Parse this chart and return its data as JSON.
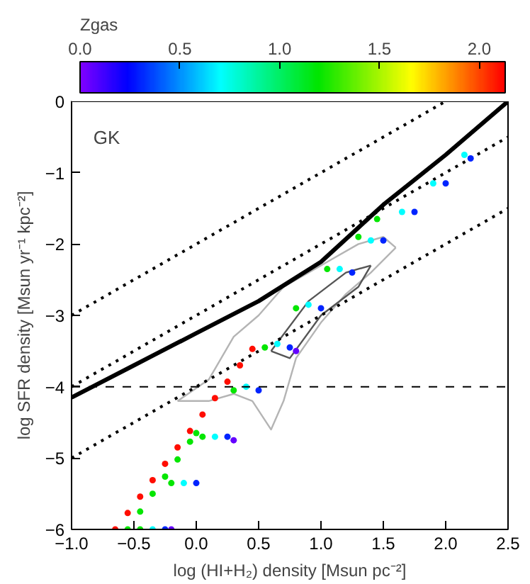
{
  "chart_data": {
    "type": "scatter",
    "xlabel": "log (HI+H₂) density [Msun pc⁻²]",
    "ylabel": "log SFR density [Msun yr⁻¹ kpc⁻²]",
    "clabel": "Zgas",
    "annotations": [
      "GK"
    ],
    "clim": [
      0,
      2.13
    ],
    "cticks": [
      {
        "value": 0,
        "label": "0.0"
      },
      {
        "value": 0.5,
        "label": "0.5"
      },
      {
        "value": 1,
        "label": "1.0"
      },
      {
        "value": 1.5,
        "label": "1.5"
      },
      {
        "value": 2,
        "label": "2.0"
      }
    ],
    "xlim": [
      -1,
      2.5
    ],
    "ylim": [
      -6,
      0
    ],
    "xticks": [
      {
        "value": -1,
        "label": "−1.0"
      },
      {
        "value": -0.5,
        "label": "−0.5"
      },
      {
        "value": 0,
        "label": "0.0"
      },
      {
        "value": 0.5,
        "label": "0.5"
      },
      {
        "value": 1,
        "label": "1.0"
      },
      {
        "value": 1.5,
        "label": "1.5"
      },
      {
        "value": 2,
        "label": "2.0"
      },
      {
        "value": 2.5,
        "label": "2.5"
      }
    ],
    "yticks": [
      {
        "value": -6,
        "label": "−6"
      },
      {
        "value": -5,
        "label": "−5"
      },
      {
        "value": -4,
        "label": "−4"
      },
      {
        "value": -3,
        "label": "−3"
      },
      {
        "value": -2,
        "label": "−2"
      },
      {
        "value": -1,
        "label": "−1"
      },
      0
    ],
    "grid": false,
    "ref_lines": [
      {
        "axis": "y",
        "value": -4,
        "color": "#000000",
        "line_style": "dashed"
      }
    ],
    "series": [
      {
        "type": "line",
        "color": "#b4b4b4",
        "line_style": "solid",
        "x": [
          -0.15,
          0.1,
          0.3,
          0.5,
          0.7,
          0.9,
          1.1,
          1.3,
          1.5,
          1.6
        ],
        "values": [
          -4.2,
          -3.9,
          -3.3,
          -3.0,
          -2.6,
          -2.4,
          -2.2,
          -2.0,
          -1.9,
          -2.05
        ]
      },
      {
        "type": "line",
        "color": "#b4b4b4",
        "line_style": "solid",
        "x": [
          -0.15,
          0.1,
          0.3,
          0.45,
          0.6,
          0.7,
          0.8,
          1.0,
          1.2,
          1.4,
          1.6
        ],
        "values": [
          -4.2,
          -4.2,
          -4.1,
          -4.2,
          -4.6,
          -4.2,
          -3.6,
          -3.1,
          -2.7,
          -2.4,
          -2.05
        ]
      },
      {
        "type": "line",
        "color": "#555555",
        "line_style": "solid",
        "x": [
          0.6,
          0.9,
          1.2,
          1.4
        ],
        "values": [
          -3.5,
          -2.8,
          -2.4,
          -2.3
        ]
      },
      {
        "type": "line",
        "color": "#555555",
        "line_style": "solid",
        "x": [
          0.6,
          0.75,
          1.0,
          1.3,
          1.4
        ],
        "values": [
          -3.5,
          -3.6,
          -3.0,
          -2.6,
          -2.3
        ]
      },
      {
        "type": "line",
        "color": "#000000",
        "line_style": "dotted",
        "x": [
          -1,
          2
        ],
        "values": [
          -3,
          0
        ]
      },
      {
        "type": "line",
        "color": "#000000",
        "line_style": "dotted",
        "x": [
          -1,
          2.5
        ],
        "values": [
          -4,
          -0.5
        ]
      },
      {
        "type": "line",
        "color": "#000000",
        "line_style": "dotted",
        "x": [
          -1,
          2.5
        ],
        "values": [
          -5,
          -1.5
        ]
      },
      {
        "type": "scatter",
        "marker": "circle",
        "x": [
          -0.65,
          -0.55,
          -0.45,
          -0.35,
          -0.25,
          -0.15,
          -0.05,
          0.05,
          0.15,
          0.25,
          0.35,
          0.45
        ],
        "values": [
          -6.0,
          -5.77,
          -5.54,
          -5.31,
          -5.08,
          -4.85,
          -4.62,
          -4.39,
          -4.16,
          -3.93,
          -3.7,
          -3.47
        ],
        "cvalues": [
          2.1,
          2.1,
          2.1,
          2.1,
          2.1,
          2.1,
          2.1,
          2.1,
          2.1,
          2.1,
          2.1,
          2.1
        ]
      },
      {
        "type": "scatter",
        "marker": "circle",
        "x": [
          -0.55,
          -0.45,
          -0.35,
          -0.25,
          -0.15,
          -0.05,
          0
        ],
        "values": [
          -6.0,
          -5.75,
          -5.5,
          -5.26,
          -5.02,
          -4.77,
          -4.65
        ],
        "cvalues": [
          1.2,
          1.2,
          1.2,
          1.2,
          1.2,
          1.2,
          1.2
        ]
      },
      {
        "type": "scatter",
        "marker": "circle",
        "x": [
          -0.45,
          -0.2,
          0.05,
          0.3,
          0.55,
          0.8,
          1.05,
          1.3,
          1.45
        ],
        "values": [
          -6.0,
          -5.35,
          -4.7,
          -4.05,
          -3.45,
          -2.9,
          -2.35,
          -1.9,
          -1.65
        ],
        "cvalues": [
          1.2,
          1.2,
          1.2,
          1.2,
          1.2,
          1.2,
          1.2,
          1.2,
          1.2
        ]
      },
      {
        "type": "scatter",
        "marker": "circle",
        "x": [
          -0.35,
          -0.1,
          0.15,
          0.4,
          0.65,
          0.9,
          1.15,
          1.4,
          1.65,
          1.9,
          2.15
        ],
        "values": [
          -6.0,
          -5.35,
          -4.7,
          -4.0,
          -3.4,
          -2.85,
          -2.35,
          -1.95,
          -1.55,
          -1.15,
          -0.75
        ],
        "cvalues": [
          0.7,
          0.7,
          0.7,
          0.7,
          0.7,
          0.7,
          0.7,
          0.7,
          0.7,
          0.7,
          0.7
        ]
      },
      {
        "type": "scatter",
        "marker": "circle",
        "x": [
          -0.25,
          0,
          0.25,
          0.5,
          0.75,
          1.0,
          1.25,
          1.5,
          1.75,
          2.0,
          2.2
        ],
        "values": [
          -6.0,
          -5.35,
          -4.7,
          -4.05,
          -3.45,
          -2.9,
          -2.4,
          -1.95,
          -1.55,
          -1.15,
          -0.8
        ],
        "cvalues": [
          0.3,
          0.3,
          0.3,
          0.3,
          0.3,
          0.3,
          0.3,
          0.3,
          0.3,
          0.3,
          0.3
        ]
      },
      {
        "type": "scatter",
        "marker": "circle",
        "x": [
          -0.2,
          0.3,
          0.8
        ],
        "values": [
          -6.0,
          -4.75,
          -3.5
        ],
        "cvalues": [
          0.05,
          0.05,
          0.05
        ]
      },
      {
        "type": "line",
        "color": "#000000",
        "line_style": "solid",
        "x": [
          -1,
          -0.5,
          0,
          0.5,
          1.0,
          1.5,
          2.0,
          2.5
        ],
        "values": [
          -4.15,
          -3.7,
          -3.25,
          -2.8,
          -2.25,
          -1.45,
          -0.75,
          0
        ]
      }
    ]
  }
}
